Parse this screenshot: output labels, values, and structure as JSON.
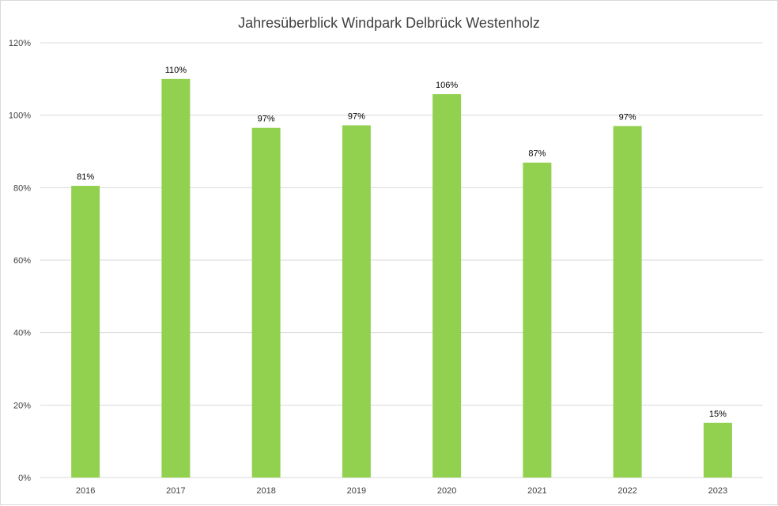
{
  "colors": {
    "bar": "#92d050",
    "gridline": "#d9d9d9",
    "axis_text": "#404040"
  },
  "chart_data": {
    "type": "bar",
    "title": "Jahresüberblick Windpark Delbrück Westenholz",
    "xlabel": "",
    "ylabel": "",
    "categories": [
      "2016",
      "2017",
      "2018",
      "2019",
      "2020",
      "2021",
      "2022",
      "2023"
    ],
    "values": [
      0.805,
      1.1,
      0.965,
      0.972,
      1.058,
      0.869,
      0.97,
      0.151
    ],
    "data_labels": [
      "81%",
      "110%",
      "97%",
      "97%",
      "106%",
      "87%",
      "97%",
      "15%"
    ],
    "ylim": [
      0,
      1.2
    ],
    "yticks": [
      0,
      0.2,
      0.4,
      0.6,
      0.8,
      1.0,
      1.2
    ],
    "ytick_labels": [
      "0%",
      "20%",
      "40%",
      "60%",
      "80%",
      "100%",
      "120%"
    ],
    "grid": true,
    "legend": "none"
  }
}
